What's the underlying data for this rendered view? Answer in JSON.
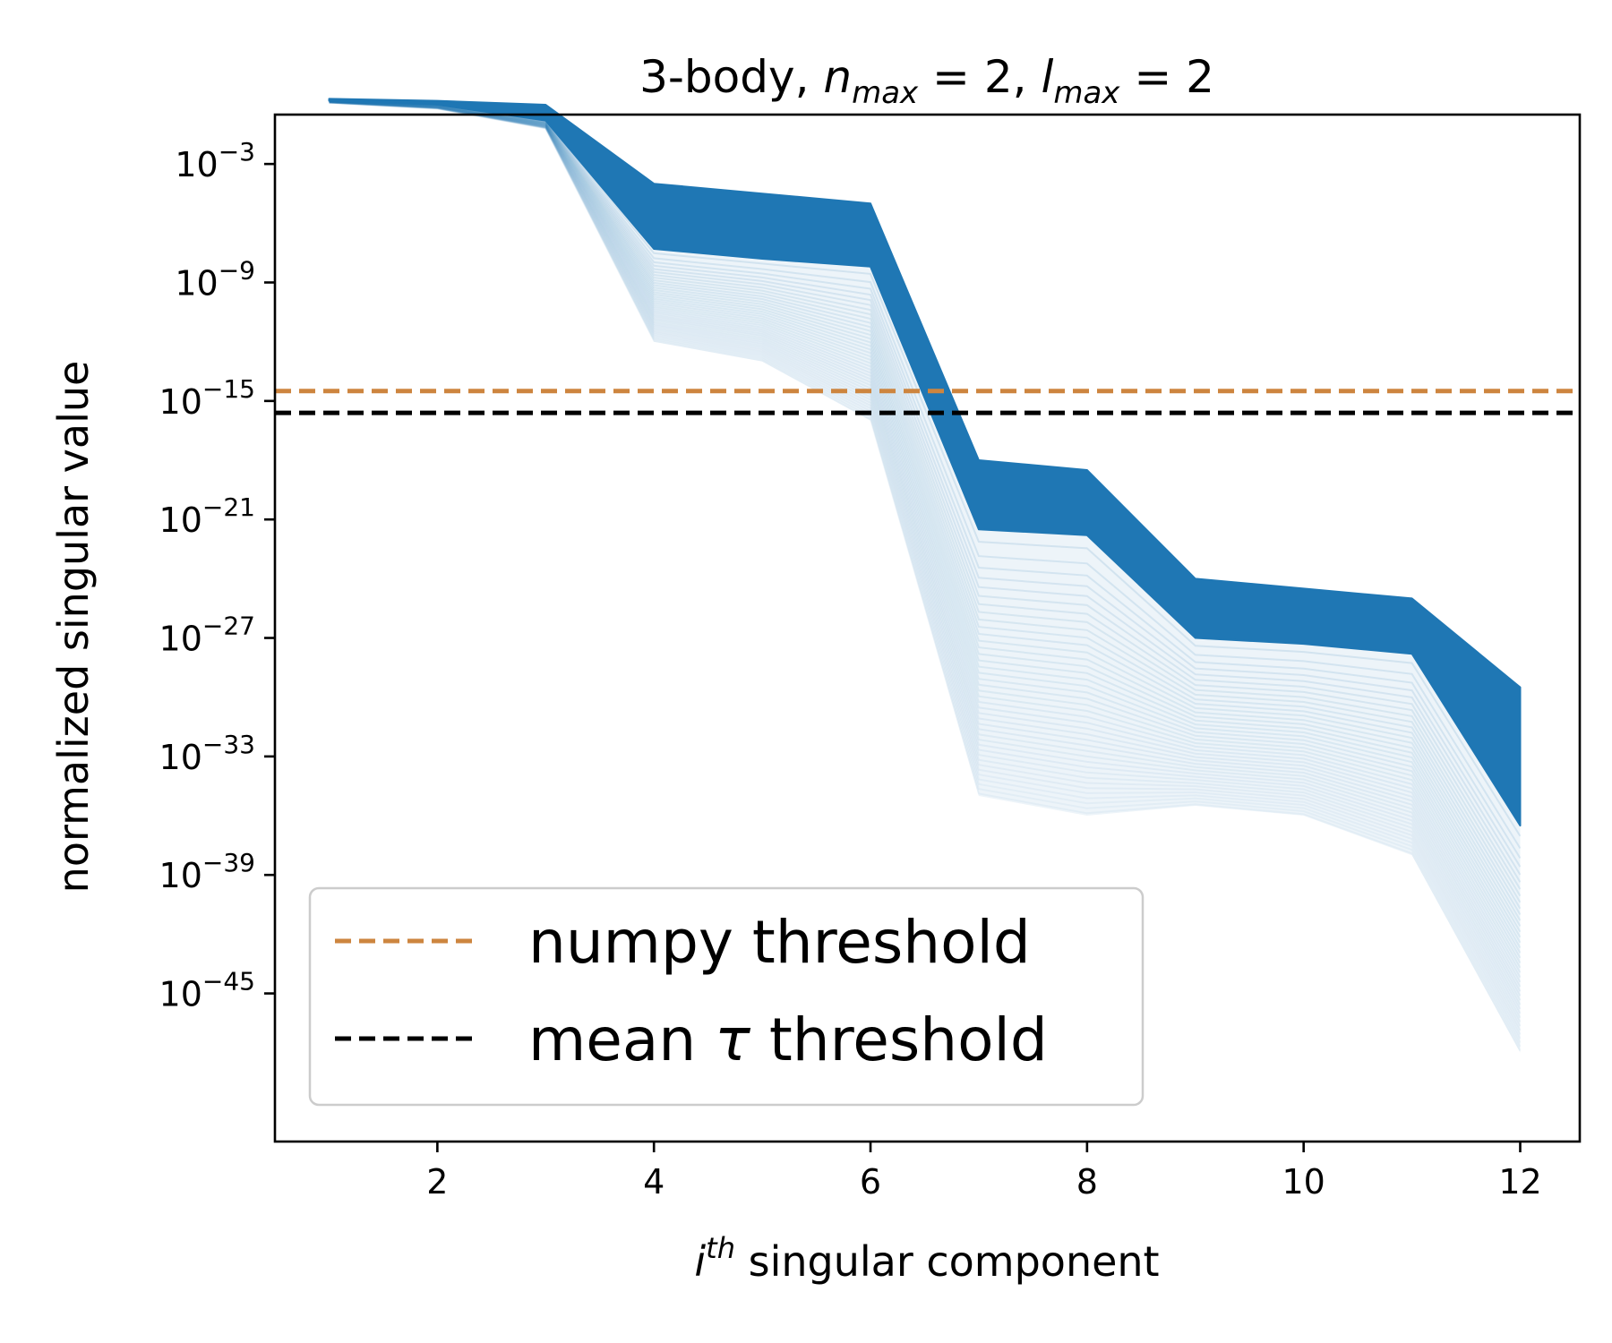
{
  "chart_data": {
    "type": "line",
    "title": "3-body, n_max = 2, l_max = 2",
    "title_parts": {
      "prefix": "3-body, ",
      "n": "n",
      "n_sub": "max",
      "n_rest": " = 2, ",
      "l": "l",
      "l_sub": "max",
      "l_rest": " = 2"
    },
    "xlabel": "i^th singular component",
    "xlabel_parts": {
      "i": "i",
      "sup": "th",
      "rest": " singular component"
    },
    "ylabel": "normalized singular value",
    "xlim": [
      0.5,
      12.55
    ],
    "ylim_log10": [
      -52.5,
      -0.5
    ],
    "y_scale": "log",
    "x_ticks": [
      2,
      4,
      6,
      8,
      10,
      12
    ],
    "x_tick_labels": [
      "2",
      "4",
      "6",
      "8",
      "10",
      "12"
    ],
    "y_ticks_log10": [
      -3,
      -9,
      -15,
      -21,
      -27,
      -33,
      -39,
      -45
    ],
    "y_tick_labels": [
      {
        "base": "10",
        "exp": "−3"
      },
      {
        "base": "10",
        "exp": "−9"
      },
      {
        "base": "10",
        "exp": "−15"
      },
      {
        "base": "10",
        "exp": "−21"
      },
      {
        "base": "10",
        "exp": "−27"
      },
      {
        "base": "10",
        "exp": "−33"
      },
      {
        "base": "10",
        "exp": "−39"
      },
      {
        "base": "10",
        "exp": "−45"
      }
    ],
    "grid": false,
    "legend_position": "lower-left",
    "x": [
      1,
      2,
      3,
      4,
      5,
      6,
      7,
      8,
      9,
      10,
      11,
      12
    ],
    "band": {
      "color": "#1f77b4",
      "upper_log10": [
        0.3,
        0.2,
        0.0,
        -4.0,
        -4.5,
        -5.0,
        -18.0,
        -18.5,
        -24.0,
        -24.5,
        -25.0,
        -29.5
      ],
      "dense_lower_log10": [
        0.2,
        0.0,
        -0.8,
        -7.3,
        -7.8,
        -8.2,
        -21.5,
        -21.8,
        -27.0,
        -27.3,
        -27.8,
        -36.5
      ],
      "sparse_lower_log10": [
        0.1,
        -0.2,
        -1.2,
        -12.0,
        -13.0,
        -16.0,
        -35.0,
        -36.0,
        -35.5,
        -36.0,
        -38.0,
        -48.0
      ]
    },
    "series": [
      {
        "name": "numpy threshold",
        "label_parts": {
          "text": "numpy threshold"
        },
        "style": "dashed",
        "color": "#cd853f",
        "y_log10": -14.5
      },
      {
        "name": "mean τ threshold",
        "label_parts": {
          "pre": "mean ",
          "tau": "τ",
          "post": " threshold"
        },
        "style": "dashed",
        "color": "#000000",
        "y_log10": -15.6
      }
    ]
  }
}
